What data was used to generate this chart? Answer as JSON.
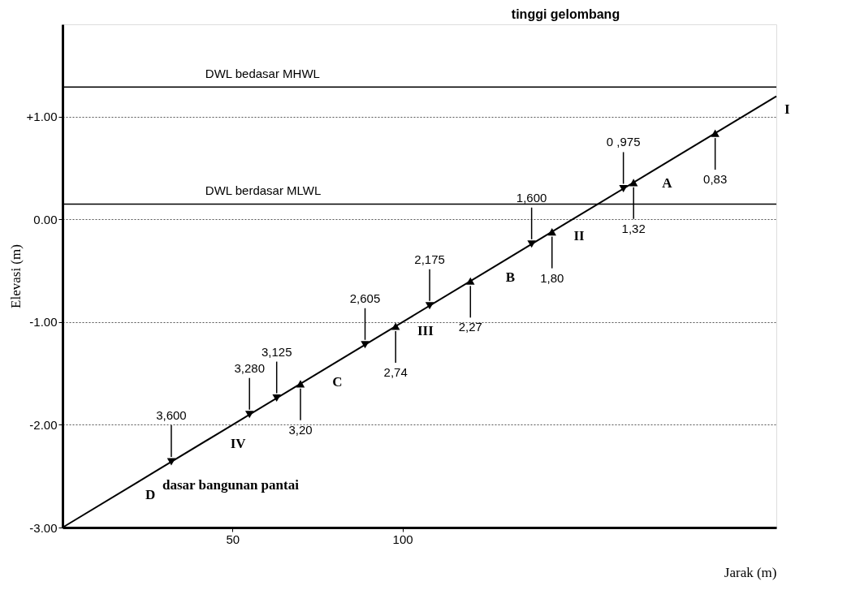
{
  "chart_data": {
    "type": "line",
    "title": "tinggi gelombang",
    "xlabel": "Jarak  (m)",
    "ylabel": "Elevasi  (m)",
    "series": [
      {
        "color": "#000000",
        "x": [
          0,
          22,
          27,
          47,
          77,
          102,
          128,
          148,
          174,
          210
        ],
        "values": [
          -3.0,
          -2.56,
          -2.46,
          -2.06,
          -1.46,
          -0.96,
          -0.44,
          -0.04,
          0.48,
          1.2
        ]
      },
      {
        "type": "scatter",
        "marker": "triangle",
        "color": "#000000",
        "x": [
          165,
          138,
          108,
          89,
          63,
          55,
          32
        ],
        "values": [
          0.3,
          -0.24,
          -0.84,
          -1.22,
          -1.74,
          -1.9,
          -2.36
        ]
      },
      {
        "type": "scatter",
        "marker": "triangle",
        "color": "#000000",
        "x": [
          192,
          168,
          144,
          120,
          98,
          70
        ],
        "values": [
          0.84,
          0.36,
          -0.12,
          -0.6,
          -1.04,
          -1.6
        ]
      }
    ],
    "xlim": [
      0,
      210
    ],
    "ylim": [
      -3,
      1.9
    ],
    "xticks": [
      50,
      100
    ],
    "yticks": [
      {
        "value": -3,
        "label": "-3.00"
      },
      {
        "value": -2,
        "label": "-2.00"
      },
      {
        "value": -1,
        "label": "-1.00"
      },
      {
        "value": 0,
        "label": "0.00"
      },
      {
        "value": 1,
        "label": "+1.00"
      }
    ],
    "grid": "y",
    "line_style": "solid",
    "ref_lines": [
      {
        "axis": "y",
        "value": 1.29,
        "label": "DWL bedasar MHWL",
        "color": "#000000"
      },
      {
        "axis": "y",
        "value": 0.15,
        "label": "DWL berdasar MLWL",
        "color": "#000000"
      }
    ],
    "annotations": [
      {
        "text": "0 ,975",
        "x": 165,
        "y": 0.3
      },
      {
        "text": "1,600",
        "x": 138,
        "y": -0.24
      },
      {
        "text": "2,175",
        "x": 108,
        "y": -0.84
      },
      {
        "text": "2,605",
        "x": 89,
        "y": -1.22
      },
      {
        "text": "3,125",
        "x": 63,
        "y": -1.74
      },
      {
        "text": "3,280",
        "x": 55,
        "y": -1.9
      },
      {
        "text": "3,600",
        "x": 32,
        "y": -2.36
      },
      {
        "text": "0,83",
        "x": 192,
        "y": 0.84
      },
      {
        "text": "1,32",
        "x": 168,
        "y": 0.36
      },
      {
        "text": "1,80",
        "x": 144,
        "y": -0.12
      },
      {
        "text": "2,27",
        "x": 120,
        "y": -0.6
      },
      {
        "text": "2,74",
        "x": 98,
        "y": -1.04
      },
      {
        "text": "3,20",
        "x": 70,
        "y": -1.6
      },
      {
        "text": "D",
        "x": 22,
        "y": -2.56
      },
      {
        "text": "dasar bangunan pantai",
        "x": 27,
        "y": -2.46
      },
      {
        "text": "IV",
        "x": 47,
        "y": -2.06
      },
      {
        "text": "C",
        "x": 77,
        "y": -1.46
      },
      {
        "text": "III",
        "x": 102,
        "y": -0.96
      },
      {
        "text": "B",
        "x": 128,
        "y": -0.44
      },
      {
        "text": "II",
        "x": 148,
        "y": -0.04
      },
      {
        "text": "A",
        "x": 174,
        "y": 0.48
      },
      {
        "text": "I",
        "x": 210,
        "y": 1.2
      }
    ]
  }
}
